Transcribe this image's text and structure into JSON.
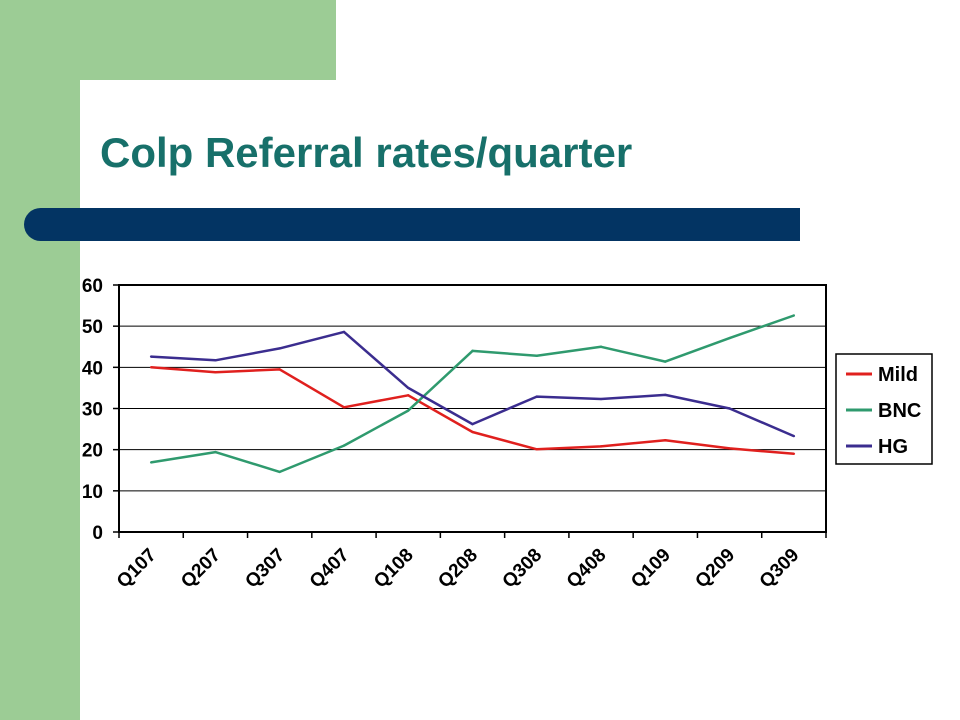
{
  "title": "Colp Referral rates/quarter",
  "chart_data": {
    "type": "line",
    "title": "",
    "xlabel": "",
    "ylabel": "",
    "categories": [
      "Q107",
      "Q207",
      "Q307",
      "Q407",
      "Q108",
      "Q208",
      "Q308",
      "Q408",
      "Q109",
      "Q209",
      "Q309"
    ],
    "ylim": [
      0,
      60
    ],
    "yticks": [
      0,
      10,
      20,
      30,
      40,
      50,
      60
    ],
    "grid": true,
    "legend": "right",
    "series": [
      {
        "name": "Mild",
        "color": "#e0201e",
        "values": [
          40,
          38.8,
          39.5,
          30.3,
          33.2,
          24.3,
          20.1,
          20.8,
          22.3,
          20.3,
          19.0
        ]
      },
      {
        "name": "BNC",
        "color": "#2f9a6e",
        "values": [
          16.9,
          19.4,
          14.6,
          21.0,
          29.5,
          44.0,
          42.8,
          45.0,
          41.4,
          47.1,
          52.6
        ]
      },
      {
        "name": "HG",
        "color": "#3b2d8f",
        "values": [
          42.6,
          41.7,
          44.6,
          48.6,
          35.0,
          26.2,
          32.9,
          32.3,
          33.3,
          30.0,
          23.3
        ]
      }
    ]
  }
}
